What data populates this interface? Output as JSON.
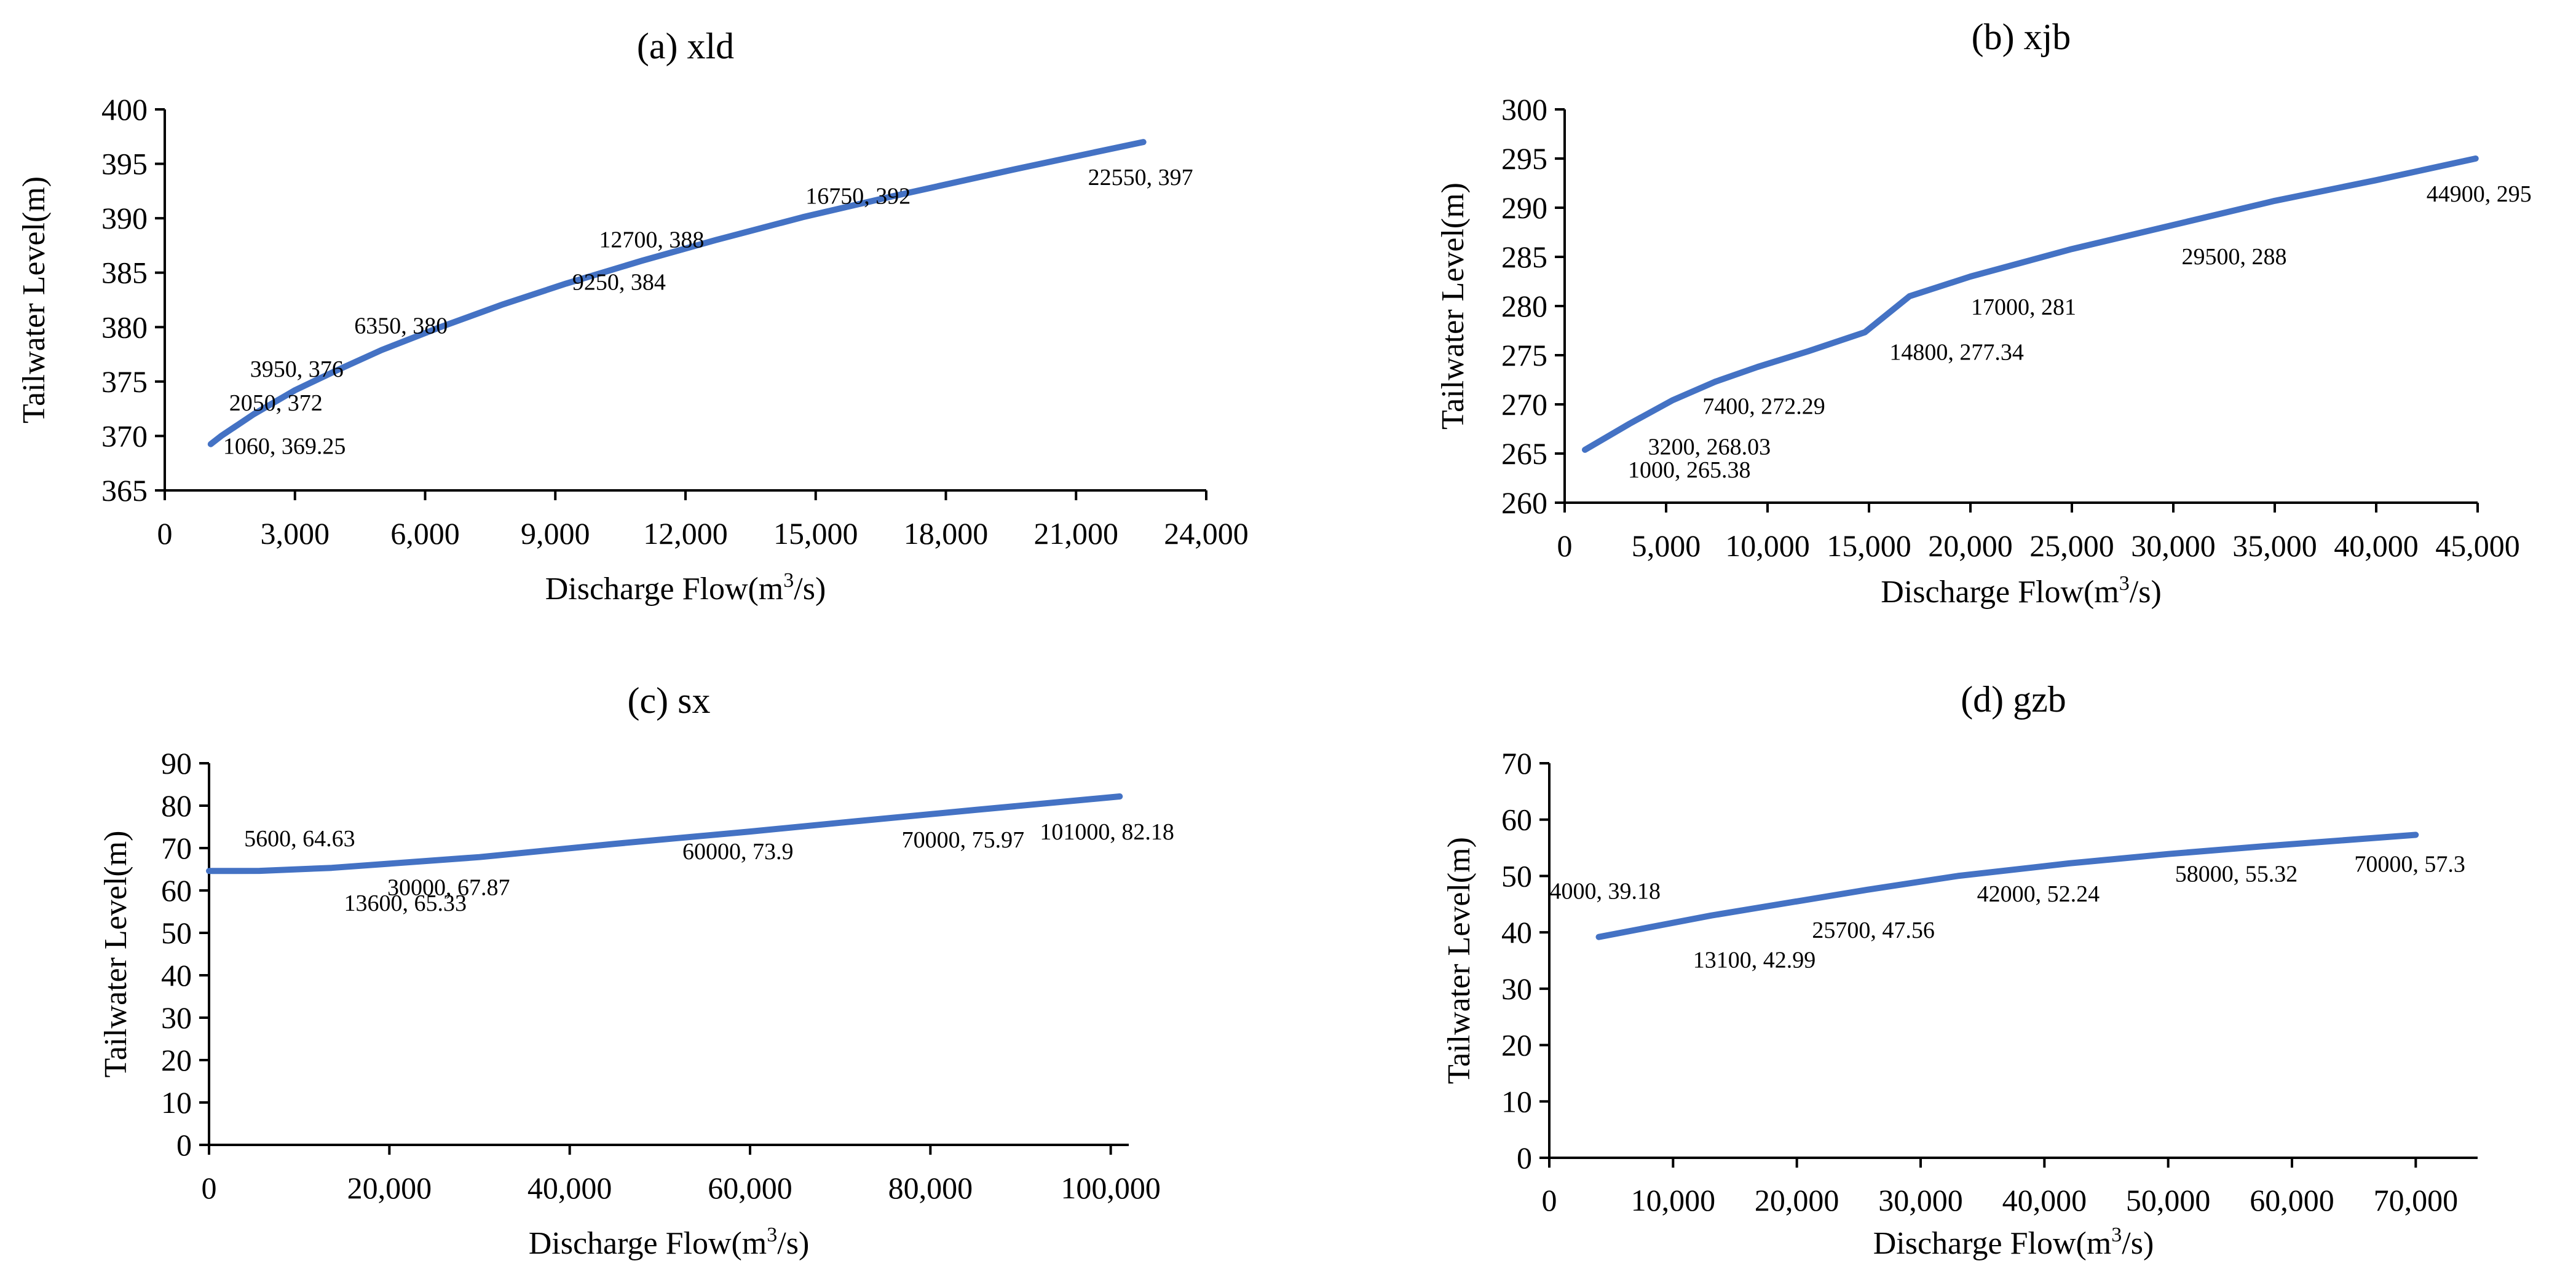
{
  "colors": {
    "series": "#4472C4",
    "axis": "#000000"
  },
  "chart_data": [
    {
      "id": "xld",
      "type": "line",
      "title": "(a) xld",
      "xlabel": "Discharge Flow(m",
      "xlabel_sup": "3",
      "xlabel_tail": "/s)",
      "ylabel": "Tailwater Level(m)",
      "xlim": [
        0,
        24000
      ],
      "ylim": [
        365,
        400
      ],
      "xticks": [
        0,
        3000,
        6000,
        9000,
        12000,
        15000,
        18000,
        21000,
        24000
      ],
      "xtick_labels": [
        "0",
        "3,000",
        "6,000",
        "9,000",
        "12,000",
        "15,000",
        "18,000",
        "21,000",
        "24,000"
      ],
      "yticks": [
        365,
        370,
        375,
        380,
        385,
        390,
        395,
        400
      ],
      "ytick_labels": [
        "365",
        "370",
        "375",
        "380",
        "385",
        "390",
        "395",
        "400"
      ],
      "series": [
        {
          "name": "xld",
          "x": [
            1060,
            1300,
            2050,
            3000,
            3950,
            5000,
            6350,
            7800,
            9250,
            11000,
            12700,
            14700,
            16750,
            19700,
            22550
          ],
          "y": [
            369.25,
            370.0,
            372,
            374.2,
            376,
            377.9,
            380,
            382.1,
            384,
            386.1,
            388,
            390.1,
            392,
            394.6,
            397
          ]
        }
      ],
      "annotations": [
        {
          "label": "1060, 369.25",
          "x": 1060,
          "y": 369.25,
          "dx": 20,
          "dy": 16
        },
        {
          "label": "2050, 372",
          "x": 2050,
          "y": 372,
          "dx": -40,
          "dy": -6
        },
        {
          "label": "3950, 376",
          "x": 3950,
          "y": 376,
          "dx": -140,
          "dy": 10
        },
        {
          "label": "6350, 380",
          "x": 6350,
          "y": 380,
          "dx": -140,
          "dy": 10
        },
        {
          "label": "9250, 384",
          "x": 9250,
          "y": 384,
          "dx": 10,
          "dy": 10
        },
        {
          "label": "12700, 388",
          "x": 12700,
          "y": 388,
          "dx": -190,
          "dy": 12
        },
        {
          "label": "16750, 392",
          "x": 16750,
          "y": 392,
          "dx": -140,
          "dy": 12
        },
        {
          "label": "22550, 397",
          "x": 22550,
          "y": 397,
          "dx": -90,
          "dy": 70
        }
      ]
    },
    {
      "id": "xjb",
      "type": "line",
      "title": "(b) xjb",
      "xlabel": "Discharge Flow(m",
      "xlabel_sup": "3",
      "xlabel_tail": "/s)",
      "ylabel": "Tailwater Level(m)",
      "xlim": [
        0,
        45000
      ],
      "ylim": [
        260,
        300
      ],
      "xticks": [
        0,
        5000,
        10000,
        15000,
        20000,
        25000,
        30000,
        35000,
        40000,
        45000
      ],
      "xtick_labels": [
        "0",
        "5,000",
        "10,000",
        "15,000",
        "20,000",
        "25,000",
        "30,000",
        "35,000",
        "40,000",
        "45,000"
      ],
      "yticks": [
        260,
        265,
        270,
        275,
        280,
        285,
        290,
        295,
        300
      ],
      "ytick_labels": [
        "260",
        "265",
        "270",
        "275",
        "280",
        "285",
        "290",
        "295",
        "300"
      ],
      "series": [
        {
          "name": "xjb",
          "x": [
            1000,
            3200,
            5300,
            7400,
            9500,
            12000,
            14800,
            17000,
            20000,
            25000,
            29500,
            35000,
            40000,
            44900
          ],
          "y": [
            265.38,
            268.03,
            270.4,
            272.29,
            273.8,
            275.4,
            277.34,
            281,
            283.0,
            285.8,
            288,
            290.7,
            292.8,
            295
          ]
        }
      ],
      "annotations": [
        {
          "label": "1000, 265.38",
          "x": 1000,
          "y": 265.38,
          "dx": 70,
          "dy": 45
        },
        {
          "label": "3200, 268.03",
          "x": 3200,
          "y": 268.03,
          "dx": 30,
          "dy": 50
        },
        {
          "label": "7400, 272.29",
          "x": 7400,
          "y": 272.29,
          "dx": -20,
          "dy": 52
        },
        {
          "label": "14800, 277.34",
          "x": 14800,
          "y": 277.34,
          "dx": 40,
          "dy": 45
        },
        {
          "label": "17000, 281",
          "x": 17000,
          "y": 281,
          "dx": 100,
          "dy": 30
        },
        {
          "label": "29500, 288",
          "x": 29500,
          "y": 288,
          "dx": 30,
          "dy": 60
        },
        {
          "label": "44900, 295",
          "x": 44900,
          "y": 295,
          "dx": -80,
          "dy": 70
        }
      ]
    },
    {
      "id": "sx",
      "type": "line",
      "title": "(c) sx",
      "xlabel": "Discharge Flow(m",
      "xlabel_sup": "3",
      "xlabel_tail": "/s)",
      "ylabel": "Tailwater Level(m)",
      "xlim": [
        0,
        102000
      ],
      "ylim": [
        0,
        90
      ],
      "xticks": [
        0,
        20000,
        40000,
        60000,
        80000,
        100000
      ],
      "xtick_labels": [
        "0",
        "20,000",
        "40,000",
        "60,000",
        "80,000",
        "100,000"
      ],
      "yticks": [
        0,
        10,
        20,
        30,
        40,
        50,
        60,
        70,
        80,
        90
      ],
      "ytick_labels": [
        "0",
        "10",
        "20",
        "30",
        "40",
        "50",
        "60",
        "70",
        "80",
        "90"
      ],
      "series": [
        {
          "name": "sx",
          "x": [
            0,
            5600,
            13600,
            30000,
            45000,
            60000,
            70000,
            85000,
            101000
          ],
          "y": [
            64.6,
            64.63,
            65.33,
            67.87,
            71.0,
            73.9,
            75.97,
            79.0,
            82.18
          ]
        }
      ],
      "annotations": [
        {
          "label": "5600, 64.63",
          "x": 5600,
          "y": 64.63,
          "dx": -25,
          "dy": -40
        },
        {
          "label": "13600, 65.33",
          "x": 13600,
          "y": 65.33,
          "dx": 20,
          "dy": 70
        },
        {
          "label": "30000, 67.87",
          "x": 30000,
          "y": 67.87,
          "dx": -150,
          "dy": 62
        },
        {
          "label": "60000, 73.9",
          "x": 60000,
          "y": 73.9,
          "dx": -110,
          "dy": 45
        },
        {
          "label": "70000, 75.97",
          "x": 70000,
          "y": 75.97,
          "dx": 100,
          "dy": 40
        },
        {
          "label": "101000, 82.18",
          "x": 101000,
          "y": 82.18,
          "dx": -130,
          "dy": 70
        }
      ]
    },
    {
      "id": "gzb",
      "type": "line",
      "title": "(d) gzb",
      "xlabel": "Discharge Flow(m",
      "xlabel_sup": "3",
      "xlabel_tail": "/s)",
      "ylabel": "Tailwater Level(m)",
      "xlim": [
        0,
        75000
      ],
      "ylim": [
        0,
        70
      ],
      "xticks": [
        0,
        10000,
        20000,
        30000,
        40000,
        50000,
        60000,
        70000
      ],
      "xtick_labels": [
        "0",
        "10,000",
        "20,000",
        "30,000",
        "40,000",
        "50,000",
        "60,000",
        "70,000"
      ],
      "yticks": [
        0,
        10,
        20,
        30,
        40,
        50,
        60,
        70
      ],
      "ytick_labels": [
        "0",
        "10",
        "20",
        "30",
        "40",
        "50",
        "60",
        "70"
      ],
      "series": [
        {
          "name": "gzb",
          "x": [
            4000,
            13100,
            25700,
            33000,
            42000,
            50000,
            58000,
            70000
          ],
          "y": [
            39.18,
            42.99,
            47.56,
            50.0,
            52.24,
            53.9,
            55.32,
            57.3
          ]
        }
      ],
      "annotations": [
        {
          "label": "4000, 39.18",
          "x": 4000,
          "y": 39.18,
          "dx": -80,
          "dy": -62
        },
        {
          "label": "13100, 42.99",
          "x": 13100,
          "y": 42.99,
          "dx": -30,
          "dy": 85
        },
        {
          "label": "25700, 47.56",
          "x": 25700,
          "y": 47.56,
          "dx": -90,
          "dy": 78
        },
        {
          "label": "42000, 52.24",
          "x": 42000,
          "y": 52.24,
          "dx": -150,
          "dy": 62
        },
        {
          "label": "58000, 55.32",
          "x": 58000,
          "y": 55.32,
          "dx": -150,
          "dy": 58
        },
        {
          "label": "70000, 57.3",
          "x": 70000,
          "y": 57.3,
          "dx": -100,
          "dy": 60
        }
      ]
    }
  ]
}
